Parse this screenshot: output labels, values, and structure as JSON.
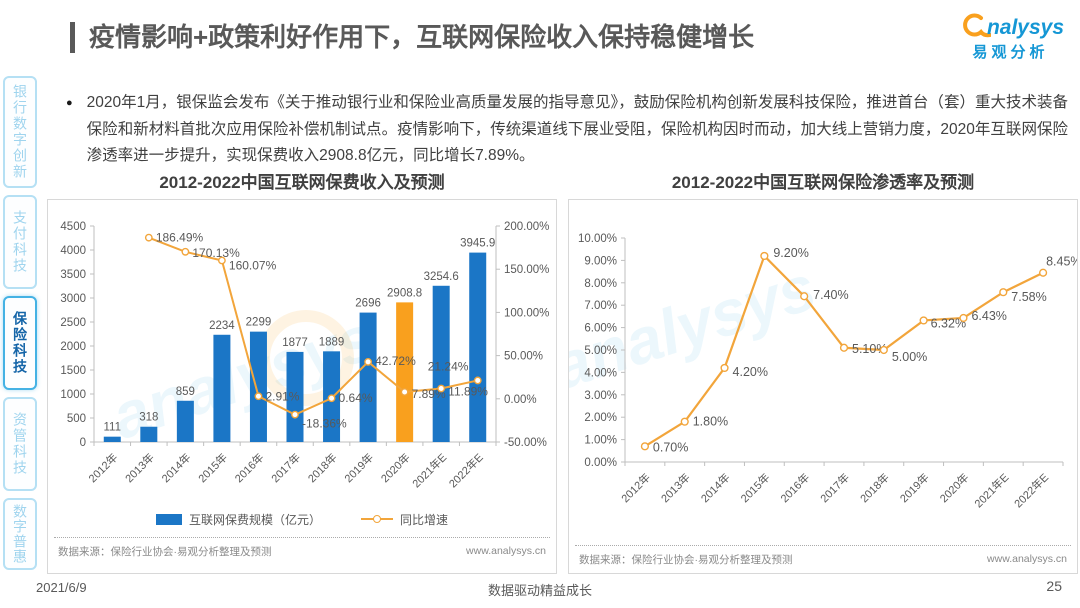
{
  "page": {
    "title": "疫情影响+政策利好作用下，互联网保险收入保持稳健增长",
    "logo": {
      "brand": "nalysys",
      "brand_cn": "易观分析"
    },
    "bullet_text": "2020年1月，银保监会发布《关于推动银行业和保险业高质量发展的指导意见》，鼓励保险机构创新发展科技保险，推进首台（套）重大技术装备保险和新材料首批次应用保险补偿机制试点。疫情影响下，传统渠道线下展业受阻，保险机构因时而动，加大线上营销力度，2020年互联网保险渗透率进一步提升，实现保费收入2908.8亿元，同比增长7.89%。",
    "footer": {
      "date": "2021/6/9",
      "slogan": "数据驱动精益成长",
      "page_number": "25"
    }
  },
  "sidebar": {
    "items": [
      {
        "label": "银行数字创新",
        "active": false
      },
      {
        "label": "支付科技",
        "active": false
      },
      {
        "label": "保险科技",
        "active": true
      },
      {
        "label": "资管科技",
        "active": false
      },
      {
        "label": "数字普惠",
        "active": false
      }
    ]
  },
  "chart_data": [
    {
      "type": "combo-bar-line",
      "title": "2012-2022中国互联网保费收入及预测",
      "categories": [
        "2012年",
        "2013年",
        "2014年",
        "2015年",
        "2016年",
        "2017年",
        "2018年",
        "2019年",
        "2020年",
        "2021年E",
        "2022年E"
      ],
      "series": [
        {
          "type": "bar",
          "name": "互联网保费规模（亿元）",
          "values": [
            111,
            318,
            859,
            2234,
            2299,
            1877,
            1889,
            2696,
            2908.8,
            3254.6,
            3945.9
          ],
          "labels": [
            "111",
            "318",
            "859",
            "2234",
            "2299",
            "1877",
            "1889",
            "2696",
            "2908.8",
            "3254.6",
            "3945.9"
          ],
          "color": "#1b76c6",
          "highlight_index": 8,
          "highlight_color": "#f9a01e"
        },
        {
          "type": "line",
          "name": "同比增速",
          "values": [
            null,
            186.49,
            170.13,
            160.07,
            2.91,
            -18.36,
            0.64,
            42.72,
            7.89,
            11.89,
            21.24
          ],
          "labels": [
            "",
            "186.49%",
            "170.13%",
            "160.07%",
            "2.91%",
            "-18.36%",
            "0.64%",
            "42.72%",
            "7.89%",
            "11.89%",
            "21.24%"
          ],
          "color": "#f2a53b"
        }
      ],
      "left_axis": {
        "min": 0,
        "max": 4500,
        "step": 500,
        "tick_labels": [
          "0",
          "500",
          "1000",
          "1500",
          "2000",
          "2500",
          "3000",
          "3500",
          "4000",
          "4500"
        ]
      },
      "right_axis": {
        "min": -50,
        "max": 200,
        "step": 50,
        "tick_labels": [
          "-50.00%",
          "0.00%",
          "50.00%",
          "100.00%",
          "150.00%",
          "200.00%"
        ]
      },
      "legend_position": "bottom",
      "grid": false,
      "source": "数据来源：保险行业协会·易观分析整理及预测",
      "site": "www.analysys.cn"
    },
    {
      "type": "line",
      "title": "2012-2022中国互联网保险渗透率及预测",
      "categories": [
        "2012年",
        "2013年",
        "2014年",
        "2015年",
        "2016年",
        "2017年",
        "2018年",
        "2019年",
        "2020年",
        "2021年E",
        "2022年E"
      ],
      "series": [
        {
          "type": "line",
          "values": [
            0.7,
            1.8,
            4.2,
            9.2,
            7.4,
            5.1,
            5.0,
            6.32,
            6.43,
            7.58,
            8.45
          ],
          "labels": [
            "0.70%",
            "1.80%",
            "4.20%",
            "9.20%",
            "7.40%",
            "5.10%",
            "5.00%",
            "6.32%",
            "6.43%",
            "7.58%",
            "8.45%"
          ],
          "color": "#f2a53b"
        }
      ],
      "y_axis": {
        "min": 0,
        "max": 10,
        "step": 1,
        "tick_labels": [
          "0.00%",
          "1.00%",
          "2.00%",
          "3.00%",
          "4.00%",
          "5.00%",
          "6.00%",
          "7.00%",
          "8.00%",
          "9.00%",
          "10.00%"
        ]
      },
      "grid": false,
      "source": "数据来源：保险行业协会·易观分析整理及预测",
      "site": "www.analysys.cn"
    }
  ]
}
